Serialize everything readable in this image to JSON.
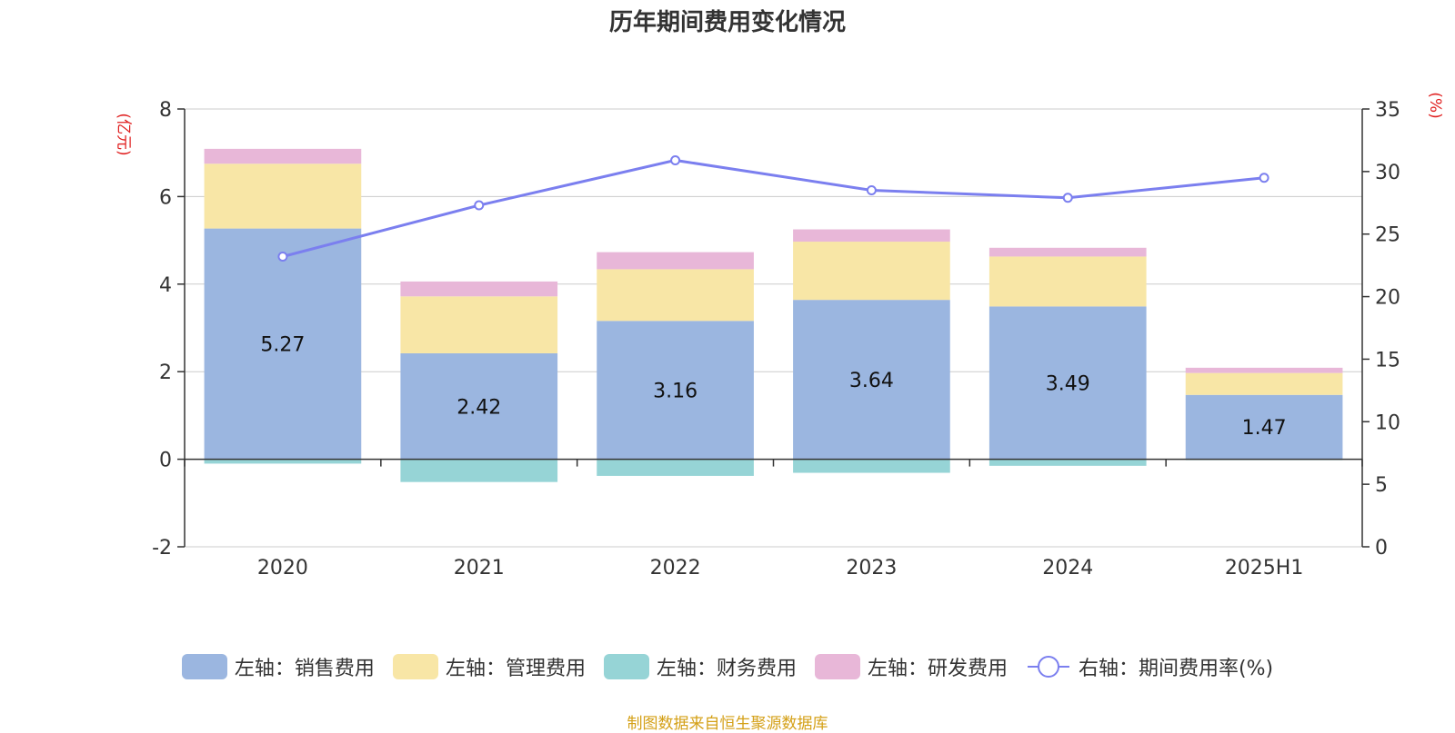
{
  "title": "历年期间费用变化情况",
  "left_unit": "(亿元)",
  "right_unit": "(%)",
  "source": "制图数据来自恒生聚源数据库",
  "chart_data": {
    "type": "bar",
    "stacked": true,
    "categories": [
      "2020",
      "2021",
      "2022",
      "2023",
      "2024",
      "2025H1"
    ],
    "y_left": {
      "ylim": [
        -2,
        8
      ],
      "ticks": [
        -2,
        0,
        2,
        4,
        6,
        8
      ]
    },
    "y_right": {
      "ylim": [
        0,
        35
      ],
      "ticks": [
        0,
        5,
        10,
        15,
        20,
        25,
        30,
        35
      ]
    },
    "grid": true,
    "legend_position": "bottom",
    "series": [
      {
        "name": "左轴：销售费用",
        "axis": "left",
        "color": "#9bb6e0",
        "values": [
          5.27,
          2.42,
          3.16,
          3.64,
          3.49,
          1.47
        ],
        "show_labels": true
      },
      {
        "name": "左轴：管理费用",
        "axis": "left",
        "color": "#f8e6a6",
        "values": [
          1.48,
          1.3,
          1.18,
          1.33,
          1.14,
          0.5
        ]
      },
      {
        "name": "左轴：财务费用",
        "axis": "left",
        "color": "#96d4d6",
        "values": [
          -0.1,
          -0.52,
          -0.38,
          -0.31,
          -0.15,
          -0.02
        ]
      },
      {
        "name": "左轴：研发费用",
        "axis": "left",
        "color": "#e8b7d8",
        "values": [
          0.34,
          0.34,
          0.39,
          0.28,
          0.2,
          0.12
        ]
      },
      {
        "name": "右轴：期间费用率(%)",
        "axis": "right",
        "type": "line",
        "color": "#7b7fef",
        "values": [
          23.2,
          27.3,
          30.9,
          28.5,
          27.9,
          29.5
        ]
      }
    ]
  }
}
